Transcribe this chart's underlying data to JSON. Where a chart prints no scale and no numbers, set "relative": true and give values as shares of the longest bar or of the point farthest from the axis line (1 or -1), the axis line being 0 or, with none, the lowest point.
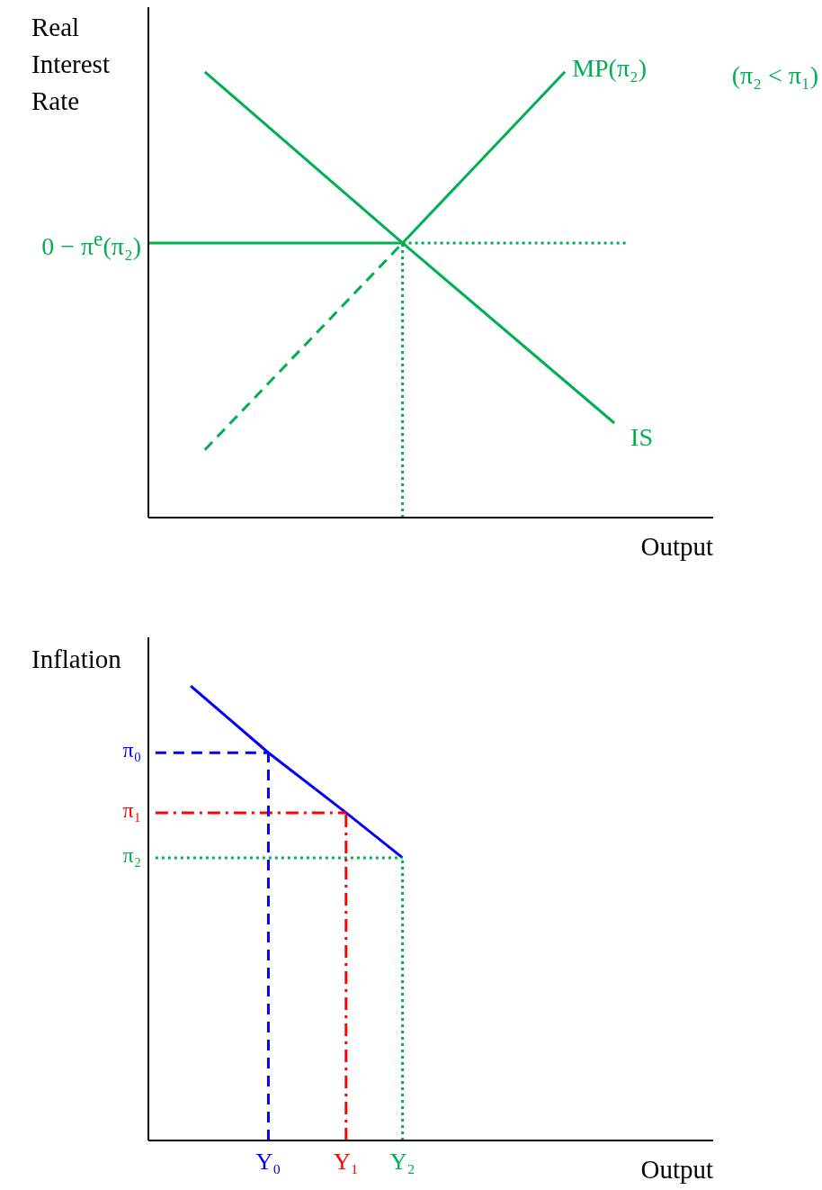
{
  "chart_data": [
    {
      "type": "line",
      "relative": true,
      "ylabel": "Real Interest Rate",
      "xlabel": "Output",
      "tick_labels": false,
      "categories": [
        null,
        null,
        null,
        null,
        null,
        null,
        null,
        null,
        null,
        null,
        null,
        null,
        null,
        null,
        null,
        null,
        null,
        "Y₀",
        null,
        null,
        null,
        null,
        null,
        null,
        null,
        null,
        null,
        null,
        "Y₁",
        null,
        null,
        null,
        null,
        null,
        null,
        null,
        "Y₂",
        null,
        null,
        null,
        null,
        null,
        null,
        null,
        null,
        null,
        null,
        null,
        null,
        null,
        null,
        null,
        null,
        null,
        null,
        null,
        null,
        null,
        null,
        null,
        null,
        null,
        null,
        null,
        null,
        null,
        null,
        null,
        null,
        null,
        null,
        null,
        null,
        null,
        null,
        null,
        null,
        null,
        null,
        null,
        null
      ],
      "series": [
        {
          "name": "IS",
          "color": "#00b050",
          "values": [
            null,
            null,
            null,
            null,
            null,
            null,
            null,
            null,
            1,
            null,
            null,
            null,
            null,
            null,
            null,
            null,
            null,
            null,
            null,
            null,
            null,
            null,
            null,
            null,
            null,
            null,
            null,
            null,
            null,
            null,
            null,
            null,
            null,
            null,
            null,
            null,
            0.616,
            null,
            null,
            null,
            null,
            null,
            null,
            null,
            null,
            null,
            null,
            null,
            null,
            null,
            null,
            null,
            null,
            null,
            null,
            null,
            null,
            null,
            null,
            null,
            null,
            null,
            null,
            null,
            null,
            null,
            0.212,
            null,
            null,
            null,
            null,
            null,
            null,
            null,
            null,
            null,
            null,
            null,
            null,
            null,
            null
          ]
        },
        {
          "name": "MP(π₂)",
          "color": "#00b050",
          "values": [
            null,
            null,
            null,
            null,
            null,
            null,
            null,
            null,
            null,
            null,
            null,
            null,
            null,
            null,
            null,
            null,
            null,
            null,
            null,
            null,
            null,
            null,
            null,
            null,
            null,
            null,
            null,
            null,
            null,
            null,
            null,
            null,
            null,
            null,
            null,
            null,
            0.616,
            null,
            null,
            null,
            null,
            null,
            null,
            null,
            null,
            null,
            null,
            null,
            null,
            null,
            null,
            null,
            null,
            null,
            null,
            null,
            null,
            null,
            null,
            1,
            null,
            null,
            null,
            null,
            null,
            null,
            null,
            null,
            null,
            null,
            null,
            null,
            null,
            null,
            null,
            null,
            null,
            null,
            null,
            null,
            null
          ]
        },
        {
          "color": "#00b050",
          "line_style": "dashed",
          "values": [
            null,
            null,
            null,
            null,
            null,
            null,
            null,
            null,
            0.152,
            null,
            null,
            null,
            null,
            null,
            null,
            null,
            null,
            null,
            null,
            null,
            null,
            null,
            null,
            null,
            null,
            null,
            null,
            null,
            null,
            null,
            null,
            null,
            null,
            null,
            null,
            null,
            0.616,
            null,
            null,
            null,
            null,
            null,
            null,
            null,
            null,
            null,
            null,
            null,
            null,
            null,
            null,
            null,
            null,
            null,
            null,
            null,
            null,
            null,
            null,
            null,
            null,
            null,
            null,
            null,
            null,
            null,
            null,
            null,
            null,
            null,
            null,
            null,
            null,
            null,
            null,
            null,
            null,
            null,
            null,
            null,
            null
          ]
        },
        {
          "color": "#00b050",
          "values": [
            0.616,
            null,
            null,
            null,
            null,
            null,
            null,
            null,
            null,
            null,
            null,
            null,
            null,
            null,
            null,
            null,
            null,
            null,
            null,
            null,
            null,
            null,
            null,
            null,
            null,
            null,
            null,
            null,
            null,
            null,
            null,
            null,
            null,
            null,
            null,
            null,
            0.616,
            null,
            null,
            null,
            null,
            null,
            null,
            null,
            null,
            null,
            null,
            null,
            null,
            null,
            null,
            null,
            null,
            null,
            null,
            null,
            null,
            null,
            null,
            null,
            null,
            null,
            null,
            null,
            null,
            null,
            null,
            null,
            null,
            null,
            null,
            null,
            null,
            null,
            null,
            null,
            null,
            null,
            null,
            null,
            null
          ]
        },
        {
          "color": "#00b050",
          "line_style": "dotted",
          "values": [
            null,
            null,
            null,
            null,
            null,
            null,
            null,
            null,
            null,
            null,
            null,
            null,
            null,
            null,
            null,
            null,
            null,
            null,
            null,
            null,
            null,
            null,
            null,
            null,
            null,
            null,
            null,
            null,
            null,
            null,
            null,
            null,
            null,
            null,
            null,
            null,
            0.616,
            null,
            null,
            null,
            null,
            null,
            null,
            null,
            null,
            null,
            null,
            null,
            null,
            null,
            null,
            null,
            null,
            null,
            null,
            null,
            null,
            null,
            null,
            null,
            null,
            null,
            null,
            null,
            null,
            null,
            null,
            null,
            0.616,
            null,
            null,
            null,
            null,
            null,
            null,
            null,
            null,
            null,
            null,
            null,
            null
          ]
        }
      ],
      "ref_lines": [
        {
          "axis": "x",
          "value": "Y₂",
          "color": "#00b050",
          "line_style": "dotted"
        }
      ],
      "annotations": [
        "0 − π$^{e}$(π₂)",
        "(π₂ < π₁)"
      ]
    },
    {
      "type": "line",
      "relative": true,
      "ylabel": "Inflation",
      "xlabel": "Output",
      "categories": [
        null,
        null,
        null,
        null,
        null,
        null,
        null,
        null,
        null,
        null,
        null,
        null,
        null,
        null,
        null,
        null,
        null,
        "Y₀",
        null,
        null,
        null,
        null,
        null,
        null,
        null,
        null,
        null,
        null,
        "Y₁",
        null,
        null,
        null,
        null,
        null,
        null,
        null,
        "Y₂",
        null,
        null,
        null,
        null,
        null,
        null,
        null,
        null,
        null,
        null,
        null,
        null,
        null,
        null,
        null,
        null,
        null,
        null,
        null,
        null,
        null,
        null,
        null,
        null,
        null,
        null,
        null,
        null,
        null,
        null,
        null,
        null,
        null,
        null,
        null,
        null,
        null,
        null,
        null,
        null,
        null,
        null,
        null,
        null
      ],
      "series": [
        {
          "color": "#0000ff",
          "values": [
            null,
            null,
            null,
            null,
            null,
            null,
            1,
            null,
            null,
            null,
            null,
            null,
            null,
            null,
            null,
            null,
            null,
            0.853,
            null,
            null,
            null,
            null,
            null,
            null,
            null,
            null,
            null,
            null,
            0.721,
            null,
            null,
            null,
            null,
            null,
            null,
            null,
            0.622,
            null,
            null,
            null,
            null,
            null,
            null,
            null,
            null,
            null,
            null,
            null,
            null,
            null,
            null,
            null,
            null,
            null,
            null,
            null,
            null,
            null,
            null,
            null,
            null,
            null,
            null,
            null,
            null,
            null,
            null,
            null,
            null,
            null,
            null,
            null,
            null,
            null,
            null,
            null,
            null,
            null,
            null,
            null,
            null
          ]
        },
        {
          "color": "#0000ff",
          "line_style": "dashed",
          "values": [
            null,
            0.853,
            null,
            null,
            null,
            null,
            null,
            null,
            null,
            null,
            null,
            null,
            null,
            null,
            null,
            null,
            null,
            0.853,
            null,
            null,
            null,
            null,
            null,
            null,
            null,
            null,
            null,
            null,
            null,
            null,
            null,
            null,
            null,
            null,
            null,
            null,
            null,
            null,
            null,
            null,
            null,
            null,
            null,
            null,
            null,
            null,
            null,
            null,
            null,
            null,
            null,
            null,
            null,
            null,
            null,
            null,
            null,
            null,
            null,
            null,
            null,
            null,
            null,
            null,
            null,
            null,
            null,
            null,
            null,
            null,
            null,
            null,
            null,
            null,
            null,
            null,
            null,
            null,
            null,
            null,
            null
          ]
        },
        {
          "color": "#ff0000",
          "line_style": "dashdot",
          "values": [
            null,
            0.721,
            null,
            null,
            null,
            null,
            null,
            null,
            null,
            null,
            null,
            null,
            null,
            null,
            null,
            null,
            null,
            null,
            null,
            null,
            null,
            null,
            null,
            null,
            null,
            null,
            null,
            null,
            0.721,
            null,
            null,
            null,
            null,
            null,
            null,
            null,
            null,
            null,
            null,
            null,
            null,
            null,
            null,
            null,
            null,
            null,
            null,
            null,
            null,
            null,
            null,
            null,
            null,
            null,
            null,
            null,
            null,
            null,
            null,
            null,
            null,
            null,
            null,
            null,
            null,
            null,
            null,
            null,
            null,
            null,
            null,
            null,
            null,
            null,
            null,
            null,
            null,
            null,
            null,
            null,
            null
          ]
        },
        {
          "color": "#00b050",
          "line_style": "dotted",
          "values": [
            null,
            0.622,
            null,
            null,
            null,
            null,
            null,
            null,
            null,
            null,
            null,
            null,
            null,
            null,
            null,
            null,
            null,
            null,
            null,
            null,
            null,
            null,
            null,
            null,
            null,
            null,
            null,
            null,
            null,
            null,
            null,
            null,
            null,
            null,
            null,
            null,
            0.622,
            null,
            null,
            null,
            null,
            null,
            null,
            null,
            null,
            null,
            null,
            null,
            null,
            null,
            null,
            null,
            null,
            null,
            null,
            null,
            null,
            null,
            null,
            null,
            null,
            null,
            null,
            null,
            null,
            null,
            null,
            null,
            null,
            null,
            null,
            null,
            null,
            null,
            null,
            null,
            null,
            null,
            null,
            null,
            null
          ]
        }
      ],
      "ref_lines": [
        {
          "axis": "x",
          "value": "Y₀",
          "color": "#0000ff",
          "line_style": "dashed"
        },
        {
          "axis": "x",
          "value": "Y₁",
          "color": "#ff0000",
          "line_style": "dashdot"
        },
        {
          "axis": "x",
          "value": "Y₂",
          "color": "#00b050",
          "line_style": "dotted"
        }
      ],
      "annotations": [
        "π₀",
        "π₁",
        "π₂"
      ]
    }
  ]
}
